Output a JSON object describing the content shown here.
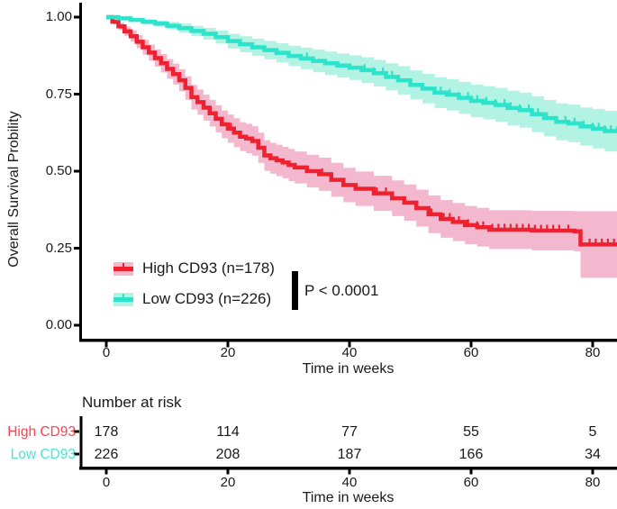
{
  "figure": {
    "y_axis_label": "Overall Survival Probility",
    "x_axis_label": "Time in weeks",
    "y_ticks": [
      "1.00",
      "0.75",
      "0.50",
      "0.25",
      "0.00"
    ],
    "x_ticks": [
      "0",
      "20",
      "40",
      "60",
      "80"
    ],
    "p_value": "P < 0.0001",
    "legend": [
      {
        "label": "High CD93 (n=178)"
      },
      {
        "label": "Low CD93 (n=226)"
      }
    ],
    "risk_table": {
      "title": "Number at risk",
      "x_axis_label": "Time in weeks",
      "x_ticks": [
        "0",
        "20",
        "40",
        "60",
        "80"
      ],
      "rows": [
        {
          "label": "High CD93",
          "color": "#f8444c",
          "values": [
            "178",
            "114",
            "77",
            "55",
            "5"
          ]
        },
        {
          "label": "Low CD93",
          "color": "#4be4d0",
          "values": [
            "226",
            "208",
            "187",
            "166",
            "34"
          ]
        }
      ]
    }
  },
  "chart_data": {
    "type": "line",
    "subtype": "kaplan-meier-step",
    "title": "",
    "xlabel": "Time in weeks",
    "ylabel": "Overall Survival Probility",
    "xlim": [
      0,
      84
    ],
    "ylim": [
      0,
      1
    ],
    "x_ticks": [
      0,
      20,
      40,
      60,
      80
    ],
    "y_ticks": [
      1.0,
      0.75,
      0.5,
      0.25,
      0.0
    ],
    "grid": false,
    "legend_position": "inside-lower-left",
    "annotation": "P < 0.0001",
    "axis_color": "#000000",
    "series": [
      {
        "name": "High CD93 (n=178)",
        "n": 178,
        "line_color": "#ee2130",
        "band_color": "#f3b8cd",
        "points": [
          [
            0,
            1.0,
            0.004
          ],
          [
            1,
            0.985,
            0.008
          ],
          [
            2,
            0.97,
            0.012
          ],
          [
            3,
            0.954,
            0.015
          ],
          [
            4,
            0.938,
            0.018
          ],
          [
            5,
            0.92,
            0.021
          ],
          [
            6,
            0.902,
            0.024
          ],
          [
            7,
            0.885,
            0.026
          ],
          [
            8,
            0.867,
            0.028
          ],
          [
            9,
            0.85,
            0.03
          ],
          [
            10,
            0.832,
            0.032
          ],
          [
            11,
            0.815,
            0.034
          ],
          [
            12,
            0.795,
            0.036
          ],
          [
            13,
            0.77,
            0.038
          ],
          [
            14,
            0.74,
            0.04
          ],
          [
            15,
            0.724,
            0.041
          ],
          [
            16,
            0.706,
            0.042
          ],
          [
            17,
            0.688,
            0.043
          ],
          [
            18,
            0.67,
            0.044
          ],
          [
            19,
            0.652,
            0.045
          ],
          [
            20,
            0.638,
            0.046
          ],
          [
            21,
            0.625,
            0.047
          ],
          [
            22,
            0.612,
            0.047
          ],
          [
            23,
            0.606,
            0.048
          ],
          [
            24,
            0.598,
            0.048
          ],
          [
            25,
            0.576,
            0.049
          ],
          [
            26,
            0.551,
            0.05
          ],
          [
            27,
            0.542,
            0.05
          ],
          [
            28,
            0.535,
            0.051
          ],
          [
            29,
            0.528,
            0.051
          ],
          [
            30,
            0.52,
            0.052
          ],
          [
            31,
            0.512,
            0.052
          ],
          [
            33,
            0.5,
            0.053
          ],
          [
            35,
            0.49,
            0.054
          ],
          [
            37,
            0.472,
            0.055
          ],
          [
            39,
            0.455,
            0.056
          ],
          [
            41,
            0.443,
            0.056
          ],
          [
            44,
            0.428,
            0.057
          ],
          [
            47,
            0.412,
            0.058
          ],
          [
            49,
            0.398,
            0.059
          ],
          [
            51,
            0.38,
            0.06
          ],
          [
            53,
            0.36,
            0.061
          ],
          [
            55,
            0.345,
            0.061
          ],
          [
            57,
            0.335,
            0.062
          ],
          [
            59,
            0.325,
            0.062
          ],
          [
            61,
            0.318,
            0.063
          ],
          [
            63,
            0.31,
            0.063
          ],
          [
            70,
            0.307,
            0.064
          ],
          [
            77,
            0.305,
            0.065
          ],
          [
            78,
            0.262,
            0.108
          ],
          [
            84,
            0.262,
            0.108
          ]
        ],
        "censor_times": [
          20.5,
          35.5,
          44.5,
          46,
          53.5,
          55.5,
          56.5,
          58,
          59.5,
          61,
          62,
          63.5,
          64.5,
          65.5,
          66.5,
          67.5,
          68.5,
          69.5,
          70.5,
          71.5,
          72.5,
          73.5,
          74.5,
          76,
          79.5,
          80.5,
          81.5,
          82.5,
          83.5
        ]
      },
      {
        "name": "Low CD93 (n=226)",
        "n": 226,
        "line_color": "#2ee3cb",
        "band_color": "#b2f3e4",
        "points": [
          [
            0,
            1.0,
            0.002
          ],
          [
            2,
            0.996,
            0.004
          ],
          [
            4,
            0.991,
            0.006
          ],
          [
            6,
            0.985,
            0.008
          ],
          [
            8,
            0.979,
            0.01
          ],
          [
            10,
            0.972,
            0.012
          ],
          [
            12,
            0.964,
            0.015
          ],
          [
            14,
            0.955,
            0.017
          ],
          [
            16,
            0.946,
            0.019
          ],
          [
            18,
            0.935,
            0.021
          ],
          [
            20,
            0.922,
            0.024
          ],
          [
            22,
            0.912,
            0.026
          ],
          [
            24,
            0.902,
            0.028
          ],
          [
            26,
            0.893,
            0.03
          ],
          [
            28,
            0.884,
            0.031
          ],
          [
            30,
            0.874,
            0.033
          ],
          [
            32,
            0.866,
            0.035
          ],
          [
            34,
            0.858,
            0.037
          ],
          [
            36,
            0.85,
            0.038
          ],
          [
            38,
            0.843,
            0.039
          ],
          [
            40,
            0.836,
            0.04
          ],
          [
            42,
            0.828,
            0.042
          ],
          [
            44,
            0.818,
            0.043
          ],
          [
            46,
            0.806,
            0.044
          ],
          [
            48,
            0.795,
            0.046
          ],
          [
            50,
            0.78,
            0.047
          ],
          [
            52,
            0.768,
            0.048
          ],
          [
            54,
            0.755,
            0.05
          ],
          [
            56,
            0.748,
            0.051
          ],
          [
            58,
            0.738,
            0.052
          ],
          [
            60,
            0.728,
            0.053
          ],
          [
            62,
            0.722,
            0.054
          ],
          [
            64,
            0.715,
            0.055
          ],
          [
            66,
            0.705,
            0.056
          ],
          [
            68,
            0.698,
            0.057
          ],
          [
            70,
            0.685,
            0.058
          ],
          [
            72,
            0.672,
            0.059
          ],
          [
            74,
            0.66,
            0.06
          ],
          [
            76,
            0.655,
            0.061
          ],
          [
            78,
            0.645,
            0.062
          ],
          [
            80,
            0.638,
            0.064
          ],
          [
            82,
            0.63,
            0.066
          ],
          [
            84,
            0.626,
            0.068
          ]
        ],
        "censor_times": [
          33,
          42.5,
          44,
          45.5,
          47,
          55,
          56.5,
          58,
          59.5,
          61,
          62.5,
          64,
          65.5,
          66.5,
          68,
          69.5,
          71,
          72.5,
          74,
          75.5,
          77,
          78.5,
          80,
          81,
          82,
          83,
          84
        ]
      }
    ],
    "risk_table": {
      "title": "Number at risk",
      "times": [
        0,
        20,
        40,
        60,
        80
      ],
      "rows": [
        {
          "name": "High CD93",
          "values": [
            178,
            114,
            77,
            55,
            5
          ]
        },
        {
          "name": "Low CD93",
          "values": [
            226,
            208,
            187,
            166,
            34
          ]
        }
      ]
    }
  }
}
